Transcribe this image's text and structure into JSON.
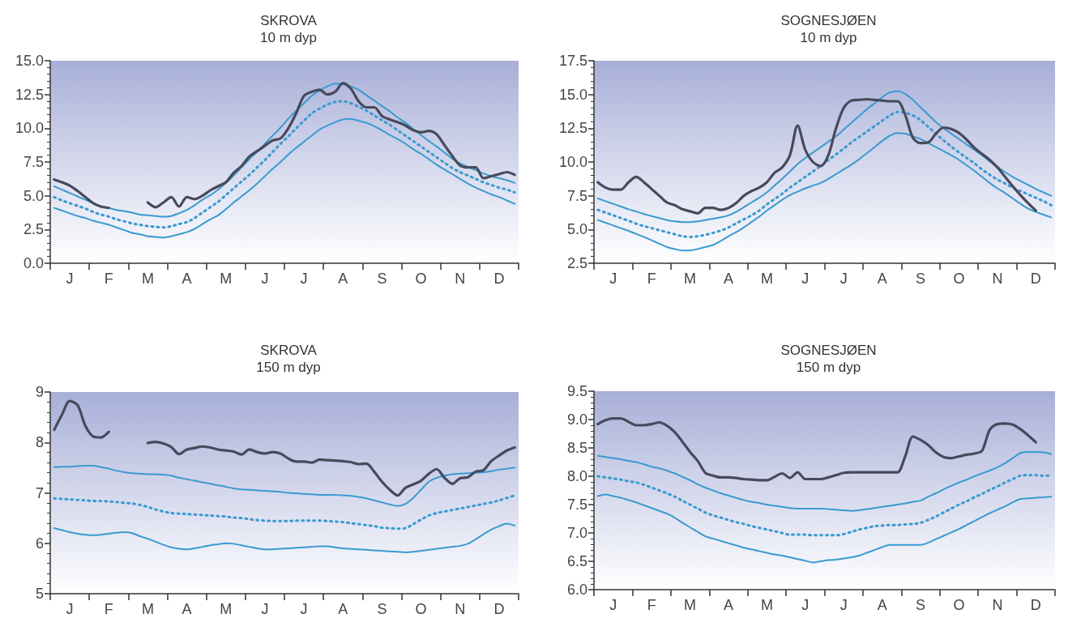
{
  "chart_data": [
    {
      "type": "line",
      "title": "SKROVA",
      "subtitle": "10 m dyp",
      "categories": [
        null,
        null,
        "J",
        null,
        null,
        null,
        null,
        "F",
        null,
        null,
        null,
        null,
        "M",
        null,
        null,
        null,
        null,
        "A",
        null,
        null,
        null,
        null,
        "M",
        null,
        null,
        null,
        null,
        "J",
        null,
        null,
        null,
        null,
        "J",
        null,
        null,
        null,
        null,
        "A",
        null,
        null,
        null,
        null,
        "S",
        null,
        null,
        null,
        null,
        "O",
        null,
        null,
        null,
        null,
        "N",
        null,
        null,
        null,
        null,
        "D",
        null,
        null
      ],
      "ylim": [
        0,
        15
      ],
      "yticks": [
        {
          "value": 0,
          "label": "0.0"
        },
        2.5,
        {
          "value": 5,
          "label": "5.0"
        },
        7.5,
        {
          "value": 10,
          "label": "10.0"
        },
        12.5,
        {
          "value": 15,
          "label": "15.0"
        }
      ],
      "series": [
        {
          "color": "#3a9ad0",
          "line_style": "solid",
          "values": [
            5.7,
            5.45,
            5.2,
            4.95,
            4.7,
            4.45,
            4.2,
            4.1,
            3.95,
            3.85,
            3.75,
            3.6,
            3.55,
            3.5,
            3.45,
            3.5,
            3.7,
            3.95,
            4.3,
            4.7,
            5.05,
            5.45,
            5.95,
            6.5,
            7.1,
            7.7,
            8.25,
            8.85,
            9.45,
            10.05,
            10.7,
            11.3,
            11.85,
            12.4,
            12.8,
            13.1,
            13.3,
            13.25,
            13.1,
            12.85,
            12.45,
            12.05,
            11.65,
            11.25,
            10.8,
            10.4,
            9.95,
            9.5,
            9.05,
            8.65,
            8.2,
            7.75,
            7.4,
            7.15,
            6.9,
            6.65,
            6.45,
            6.3,
            6.15,
            5.95
          ]
        },
        {
          "color": "#3a9ad0",
          "line_style": "dotted",
          "values": [
            4.9,
            4.65,
            4.45,
            4.25,
            4.05,
            3.8,
            3.6,
            3.45,
            3.25,
            3.1,
            2.95,
            2.85,
            2.75,
            2.7,
            2.65,
            2.75,
            2.9,
            3.05,
            3.35,
            3.75,
            4.15,
            4.55,
            5.05,
            5.55,
            6.05,
            6.55,
            7.1,
            7.65,
            8.25,
            8.85,
            9.4,
            10.0,
            10.55,
            11.1,
            11.45,
            11.75,
            11.95,
            12.0,
            11.85,
            11.6,
            11.3,
            10.95,
            10.6,
            10.25,
            9.85,
            9.45,
            9.05,
            8.65,
            8.25,
            7.85,
            7.45,
            7.05,
            6.75,
            6.5,
            6.25,
            6.0,
            5.8,
            5.6,
            5.45,
            5.25
          ]
        },
        {
          "color": "#3a9ad0",
          "line_style": "solid",
          "values": [
            4.1,
            3.9,
            3.7,
            3.5,
            3.35,
            3.15,
            3.0,
            2.85,
            2.65,
            2.45,
            2.25,
            2.15,
            2.0,
            1.95,
            1.9,
            2.0,
            2.15,
            2.3,
            2.55,
            2.9,
            3.25,
            3.55,
            4.0,
            4.5,
            4.95,
            5.4,
            5.9,
            6.45,
            7.0,
            7.5,
            8.05,
            8.55,
            9.0,
            9.45,
            9.9,
            10.2,
            10.45,
            10.65,
            10.7,
            10.55,
            10.4,
            10.15,
            9.85,
            9.5,
            9.2,
            8.85,
            8.45,
            8.1,
            7.7,
            7.3,
            6.95,
            6.6,
            6.25,
            5.9,
            5.6,
            5.35,
            5.1,
            4.9,
            4.65,
            4.4
          ]
        },
        {
          "color": "#474a5c",
          "line_style": "solid",
          "values": [
            6.2,
            6.0,
            5.75,
            5.35,
            4.9,
            4.45,
            4.2,
            4.1,
            null,
            null,
            null,
            null,
            4.5,
            4.15,
            4.5,
            4.9,
            4.2,
            4.9,
            4.75,
            5.0,
            5.4,
            5.7,
            6.0,
            6.7,
            7.2,
            7.9,
            8.3,
            8.7,
            9.1,
            9.25,
            10.0,
            11.1,
            12.4,
            12.7,
            12.85,
            12.5,
            12.7,
            13.35,
            12.95,
            12.0,
            11.55,
            11.55,
            10.9,
            10.65,
            10.45,
            10.2,
            9.85,
            9.7,
            9.8,
            9.55,
            8.75,
            7.95,
            7.25,
            7.1,
            7.1,
            6.3,
            6.45,
            6.6,
            6.75,
            6.55
          ]
        }
      ]
    },
    {
      "type": "line",
      "title": "SOGNESJØEN",
      "subtitle": "10 m dyp",
      "categories": [
        null,
        null,
        "J",
        null,
        null,
        null,
        null,
        "F",
        null,
        null,
        null,
        null,
        "M",
        null,
        null,
        null,
        null,
        "A",
        null,
        null,
        null,
        null,
        "M",
        null,
        null,
        null,
        null,
        "J",
        null,
        null,
        null,
        null,
        "J",
        null,
        null,
        null,
        null,
        "A",
        null,
        null,
        null,
        null,
        "S",
        null,
        null,
        null,
        null,
        "O",
        null,
        null,
        null,
        null,
        "N",
        null,
        null,
        null,
        null,
        "D",
        null,
        null
      ],
      "ylim": [
        2.5,
        17.5
      ],
      "yticks": [
        2.5,
        {
          "value": 5,
          "label": "5.0"
        },
        7.5,
        {
          "value": 10,
          "label": "10.0"
        },
        12.5,
        {
          "value": 15,
          "label": "15.0"
        },
        17.5
      ],
      "series": [
        {
          "color": "#3a9ad0",
          "line_style": "solid",
          "values": [
            7.3,
            7.1,
            6.9,
            6.7,
            6.5,
            6.33,
            6.15,
            6.0,
            5.85,
            5.7,
            5.6,
            5.55,
            5.55,
            5.6,
            5.7,
            5.8,
            5.9,
            6.05,
            6.3,
            6.65,
            7.0,
            7.35,
            7.75,
            8.25,
            8.75,
            9.3,
            9.85,
            10.3,
            10.7,
            11.1,
            11.5,
            11.9,
            12.4,
            12.9,
            13.4,
            13.9,
            14.35,
            14.8,
            15.15,
            15.25,
            15.05,
            14.6,
            14.05,
            13.5,
            12.95,
            12.5,
            12.1,
            11.7,
            11.3,
            10.9,
            10.5,
            10.05,
            9.65,
            9.25,
            8.9,
            8.6,
            8.3,
            8.0,
            7.75,
            7.5
          ]
        },
        {
          "color": "#3a9ad0",
          "line_style": "dotted",
          "values": [
            6.45,
            6.25,
            6.05,
            5.85,
            5.65,
            5.43,
            5.25,
            5.1,
            4.95,
            4.8,
            4.65,
            4.5,
            4.45,
            4.5,
            4.6,
            4.75,
            4.92,
            5.15,
            5.45,
            5.75,
            6.05,
            6.4,
            6.85,
            7.25,
            7.65,
            8.1,
            8.5,
            8.9,
            9.3,
            9.7,
            10.15,
            10.55,
            11.0,
            11.45,
            11.85,
            12.25,
            12.65,
            13.05,
            13.45,
            13.7,
            13.65,
            13.45,
            13.1,
            12.6,
            12.1,
            11.6,
            11.15,
            10.7,
            10.3,
            9.9,
            9.45,
            9.05,
            8.7,
            8.4,
            8.1,
            7.85,
            7.6,
            7.35,
            7.1,
            6.8
          ]
        },
        {
          "color": "#3a9ad0",
          "line_style": "solid",
          "values": [
            5.7,
            5.5,
            5.3,
            5.1,
            4.9,
            4.67,
            4.45,
            4.2,
            3.95,
            3.7,
            3.55,
            3.45,
            3.45,
            3.55,
            3.7,
            3.85,
            4.15,
            4.5,
            4.8,
            5.15,
            5.55,
            5.95,
            6.4,
            6.8,
            7.2,
            7.55,
            7.8,
            8.05,
            8.25,
            8.45,
            8.75,
            9.1,
            9.45,
            9.8,
            10.2,
            10.65,
            11.1,
            11.55,
            11.95,
            12.15,
            12.1,
            11.9,
            11.7,
            11.4,
            11.1,
            10.8,
            10.5,
            10.15,
            9.75,
            9.35,
            8.9,
            8.45,
            8.05,
            7.7,
            7.3,
            6.9,
            6.55,
            6.3,
            6.1,
            5.9
          ]
        },
        {
          "color": "#474a5c",
          "line_style": "solid",
          "values": [
            8.5,
            8.1,
            7.95,
            7.95,
            8.5,
            8.9,
            8.5,
            8.0,
            7.5,
            7.0,
            6.8,
            6.5,
            6.35,
            6.2,
            6.6,
            6.6,
            6.45,
            6.6,
            6.95,
            7.5,
            7.85,
            8.1,
            8.5,
            9.2,
            9.6,
            10.5,
            12.7,
            10.9,
            10.0,
            9.7,
            10.5,
            12.5,
            14.0,
            14.55,
            14.6,
            14.65,
            14.6,
            14.55,
            14.5,
            14.5,
            13.5,
            11.8,
            11.4,
            11.45,
            12.1,
            12.55,
            12.45,
            12.15,
            11.65,
            11.05,
            10.6,
            10.15,
            9.6,
            8.9,
            8.2,
            7.55,
            6.95,
            6.4,
            null,
            null
          ]
        }
      ]
    },
    {
      "type": "line",
      "title": "SKROVA",
      "subtitle": "150 m dyp",
      "categories": [
        null,
        null,
        "J",
        null,
        null,
        null,
        null,
        "F",
        null,
        null,
        null,
        null,
        "M",
        null,
        null,
        null,
        null,
        "A",
        null,
        null,
        null,
        null,
        "M",
        null,
        null,
        null,
        null,
        "J",
        null,
        null,
        null,
        null,
        "J",
        null,
        null,
        null,
        null,
        "A",
        null,
        null,
        null,
        null,
        "S",
        null,
        null,
        null,
        null,
        "O",
        null,
        null,
        null,
        null,
        "N",
        null,
        null,
        null,
        null,
        "D",
        null,
        null
      ],
      "ylim": [
        5,
        9
      ],
      "yticks": [
        5,
        6,
        7,
        8,
        9
      ],
      "series": [
        {
          "color": "#3a9ad0",
          "line_style": "solid",
          "values": [
            7.51,
            7.52,
            7.52,
            7.53,
            7.54,
            7.54,
            7.51,
            7.48,
            7.44,
            7.41,
            7.39,
            7.38,
            7.37,
            7.37,
            7.36,
            7.34,
            7.3,
            7.27,
            7.24,
            7.21,
            7.18,
            7.15,
            7.12,
            7.09,
            7.07,
            7.06,
            7.05,
            7.04,
            7.03,
            7.02,
            7.0,
            6.99,
            6.98,
            6.97,
            6.96,
            6.96,
            6.96,
            6.95,
            6.94,
            6.92,
            6.89,
            6.85,
            6.81,
            6.77,
            6.74,
            6.78,
            6.9,
            7.06,
            7.22,
            7.3,
            7.34,
            7.37,
            7.38,
            7.39,
            7.4,
            7.41,
            7.43,
            7.46,
            7.48,
            7.5
          ]
        },
        {
          "color": "#3a9ad0",
          "line_style": "dotted",
          "values": [
            6.89,
            6.88,
            6.87,
            6.86,
            6.85,
            6.84,
            6.84,
            6.83,
            6.82,
            6.8,
            6.79,
            6.76,
            6.72,
            6.67,
            6.63,
            6.6,
            6.59,
            6.58,
            6.57,
            6.56,
            6.55,
            6.54,
            6.53,
            6.51,
            6.5,
            6.48,
            6.46,
            6.45,
            6.44,
            6.44,
            6.44,
            6.45,
            6.45,
            6.45,
            6.45,
            6.44,
            6.43,
            6.42,
            6.4,
            6.38,
            6.36,
            6.34,
            6.31,
            6.3,
            6.29,
            6.3,
            6.38,
            6.47,
            6.55,
            6.6,
            6.63,
            6.66,
            6.69,
            6.72,
            6.75,
            6.78,
            6.81,
            6.85,
            6.9,
            6.95
          ]
        },
        {
          "color": "#3a9ad0",
          "line_style": "solid",
          "values": [
            6.3,
            6.26,
            6.22,
            6.19,
            6.17,
            6.16,
            6.17,
            6.19,
            6.21,
            6.22,
            6.2,
            6.14,
            6.09,
            6.03,
            5.97,
            5.92,
            5.89,
            5.88,
            5.9,
            5.93,
            5.96,
            5.98,
            6.0,
            5.99,
            5.96,
            5.93,
            5.9,
            5.88,
            5.88,
            5.89,
            5.9,
            5.91,
            5.92,
            5.93,
            5.94,
            5.94,
            5.92,
            5.9,
            5.89,
            5.88,
            5.87,
            5.86,
            5.85,
            5.84,
            5.83,
            5.82,
            5.83,
            5.85,
            5.87,
            5.89,
            5.91,
            5.93,
            5.95,
            5.99,
            6.08,
            6.18,
            6.27,
            6.34,
            6.39,
            6.35
          ]
        },
        {
          "color": "#474a5c",
          "line_style": "solid",
          "values": [
            8.25,
            8.55,
            8.82,
            8.74,
            8.33,
            8.12,
            8.1,
            8.21,
            null,
            null,
            null,
            null,
            7.99,
            8.01,
            7.98,
            7.91,
            7.77,
            7.86,
            7.89,
            7.92,
            7.9,
            7.86,
            7.84,
            7.82,
            7.76,
            7.86,
            7.81,
            7.78,
            7.81,
            7.78,
            7.68,
            7.62,
            7.62,
            7.6,
            7.66,
            7.65,
            7.64,
            7.63,
            7.61,
            7.57,
            7.58,
            7.42,
            7.22,
            7.06,
            6.95,
            7.1,
            7.17,
            7.24,
            7.38,
            7.47,
            7.3,
            7.18,
            7.29,
            7.31,
            7.42,
            7.45,
            7.63,
            7.74,
            7.84,
            7.9
          ]
        }
      ]
    },
    {
      "type": "line",
      "title": "SOGNESJØEN",
      "subtitle": "150 m dyp",
      "categories": [
        null,
        null,
        "J",
        null,
        null,
        null,
        null,
        "F",
        null,
        null,
        null,
        null,
        "M",
        null,
        null,
        null,
        null,
        "A",
        null,
        null,
        null,
        null,
        "M",
        null,
        null,
        null,
        null,
        "J",
        null,
        null,
        null,
        null,
        "J",
        null,
        null,
        null,
        null,
        "A",
        null,
        null,
        null,
        null,
        "S",
        null,
        null,
        null,
        null,
        "O",
        null,
        null,
        null,
        null,
        "N",
        null,
        null,
        null,
        null,
        "D",
        null,
        null
      ],
      "ylim": [
        6,
        9.5
      ],
      "yticks": [
        {
          "value": 6,
          "label": "6.0"
        },
        6.5,
        {
          "value": 7,
          "label": "7.0"
        },
        7.5,
        {
          "value": 8,
          "label": "8.0"
        },
        8.5,
        {
          "value": 9,
          "label": "9.0"
        },
        9.5
      ],
      "series": [
        {
          "color": "#3a9ad0",
          "line_style": "solid",
          "values": [
            8.36,
            8.34,
            8.32,
            8.3,
            8.27,
            8.25,
            8.21,
            8.17,
            8.14,
            8.1,
            8.05,
            7.99,
            7.93,
            7.86,
            7.8,
            7.75,
            7.7,
            7.66,
            7.62,
            7.58,
            7.55,
            7.53,
            7.5,
            7.48,
            7.46,
            7.44,
            7.43,
            7.43,
            7.43,
            7.43,
            7.42,
            7.41,
            7.4,
            7.39,
            7.4,
            7.42,
            7.44,
            7.46,
            7.48,
            7.5,
            7.52,
            7.55,
            7.57,
            7.64,
            7.7,
            7.77,
            7.83,
            7.89,
            7.94,
            8.0,
            8.05,
            8.1,
            8.16,
            8.23,
            8.32,
            8.41,
            8.43,
            8.43,
            8.42,
            8.39
          ]
        },
        {
          "color": "#3a9ad0",
          "line_style": "dotted",
          "values": [
            8.0,
            7.98,
            7.96,
            7.94,
            7.91,
            7.89,
            7.85,
            7.8,
            7.75,
            7.7,
            7.64,
            7.57,
            7.5,
            7.43,
            7.36,
            7.31,
            7.27,
            7.23,
            7.19,
            7.16,
            7.12,
            7.09,
            7.06,
            7.03,
            7.0,
            6.97,
            6.97,
            6.97,
            6.96,
            6.96,
            6.96,
            6.96,
            6.98,
            7.02,
            7.06,
            7.09,
            7.12,
            7.13,
            7.14,
            7.14,
            7.15,
            7.16,
            7.18,
            7.23,
            7.29,
            7.36,
            7.43,
            7.5,
            7.56,
            7.63,
            7.69,
            7.76,
            7.82,
            7.89,
            7.95,
            8.01,
            8.02,
            8.02,
            8.01,
            8.01
          ]
        },
        {
          "color": "#3a9ad0",
          "line_style": "solid",
          "values": [
            7.65,
            7.68,
            7.65,
            7.62,
            7.58,
            7.54,
            7.49,
            7.44,
            7.39,
            7.34,
            7.27,
            7.18,
            7.1,
            7.02,
            6.94,
            6.9,
            6.86,
            6.82,
            6.78,
            6.74,
            6.71,
            6.68,
            6.65,
            6.62,
            6.6,
            6.57,
            6.54,
            6.51,
            6.48,
            6.5,
            6.52,
            6.53,
            6.55,
            6.57,
            6.6,
            6.65,
            6.7,
            6.75,
            6.79,
            6.79,
            6.79,
            6.79,
            6.79,
            6.83,
            6.89,
            6.95,
            7.01,
            7.07,
            7.14,
            7.21,
            7.28,
            7.35,
            7.41,
            7.47,
            7.54,
            7.6,
            7.61,
            7.62,
            7.63,
            7.64
          ]
        },
        {
          "color": "#474a5c",
          "line_style": "solid",
          "values": [
            8.92,
            8.99,
            9.02,
            9.02,
            8.96,
            8.9,
            8.9,
            8.92,
            8.95,
            8.89,
            8.78,
            8.61,
            8.43,
            8.27,
            8.06,
            8.01,
            7.98,
            7.98,
            7.97,
            7.95,
            7.94,
            7.93,
            7.93,
            7.99,
            8.05,
            7.97,
            8.07,
            7.95,
            7.95,
            7.95,
            7.98,
            8.02,
            8.06,
            8.07,
            8.07,
            8.07,
            8.07,
            8.07,
            8.07,
            8.07,
            8.35,
            8.7,
            8.64,
            8.55,
            8.42,
            8.34,
            8.32,
            8.35,
            8.38,
            8.4,
            8.45,
            8.82,
            8.92,
            8.93,
            8.91,
            8.83,
            8.72,
            8.6,
            null,
            null
          ]
        }
      ]
    }
  ]
}
